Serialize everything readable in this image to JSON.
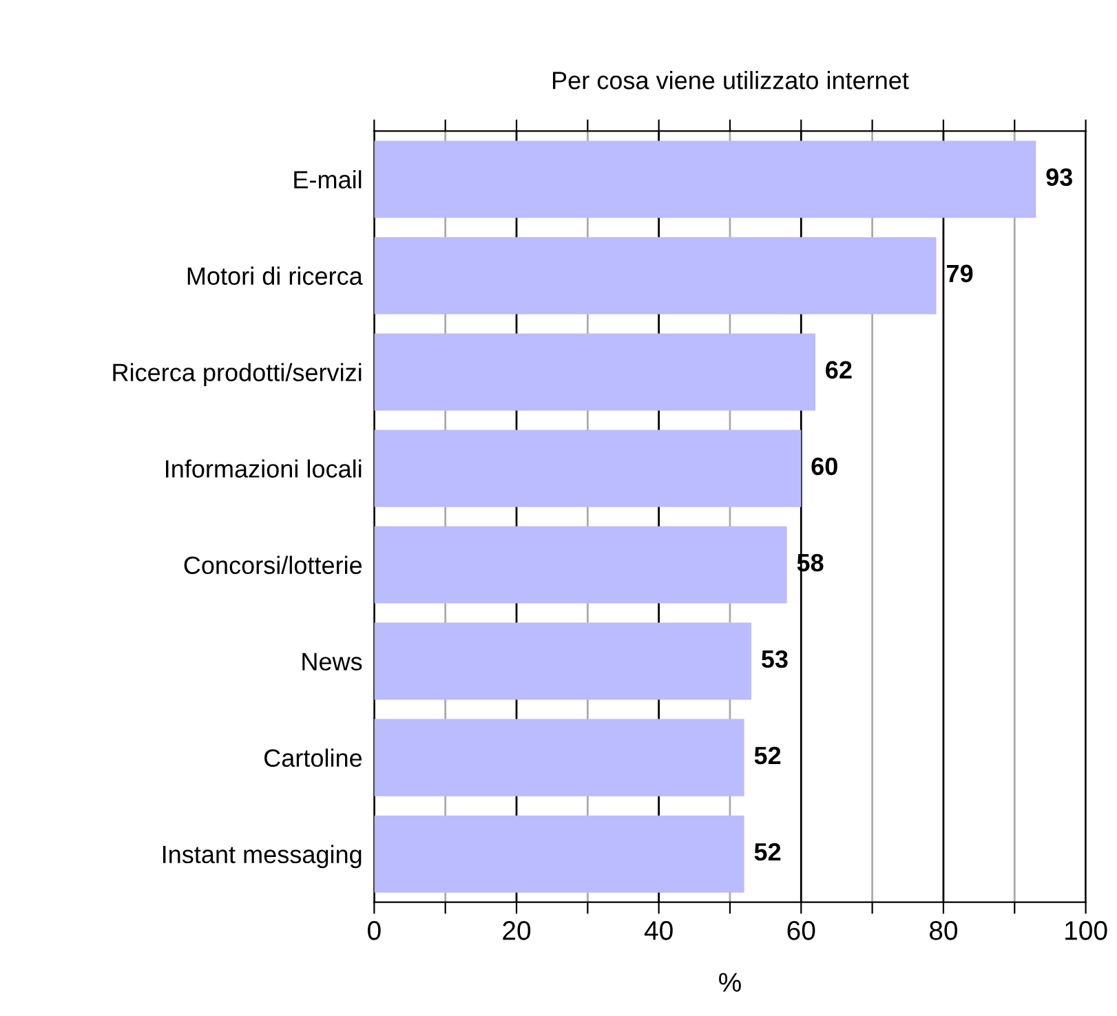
{
  "chart_data": {
    "type": "bar",
    "orientation": "horizontal",
    "title": "Per cosa viene utilizzato internet",
    "xlabel": "%",
    "categories": [
      "E-mail",
      "Motori di ricerca",
      "Ricerca prodotti/servizi",
      "Informazioni locali",
      "Concorsi/lotterie",
      "News",
      "Cartoline",
      "Instant messaging"
    ],
    "values": [
      93,
      79,
      62,
      60,
      58,
      53,
      52,
      52
    ],
    "color": "#bbbbff",
    "xlim": [
      0,
      100
    ],
    "xticks": [
      0,
      {
        "value": 10,
        "label": null
      },
      20,
      {
        "value": 30,
        "label": null
      },
      40,
      {
        "value": 50,
        "label": null
      },
      60,
      {
        "value": 70,
        "label": null
      },
      80,
      {
        "value": 90,
        "label": null
      },
      100
    ],
    "grid": "x",
    "data_labels": true
  }
}
